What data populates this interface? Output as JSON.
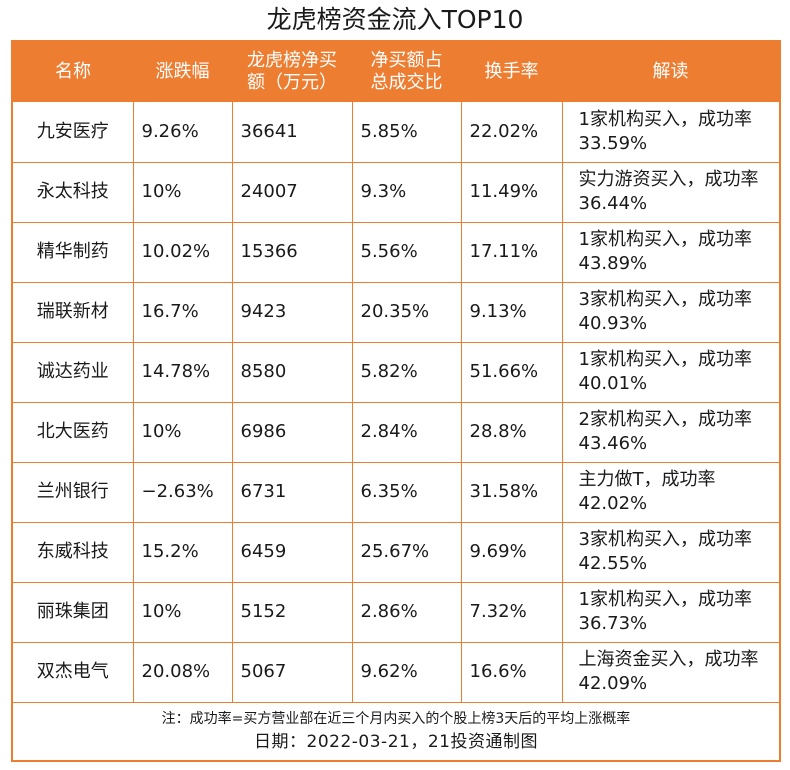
{
  "title": "龙虎榜资金流入TOP10",
  "table": {
    "headers": [
      "名称",
      "涨跌幅",
      "龙虎榜净买额（万元）",
      "净买额占总成交比",
      "换手率",
      "解读"
    ],
    "header_lines": [
      [
        "名称"
      ],
      [
        "涨跌幅"
      ],
      [
        "龙虎榜净买",
        "额（万元）"
      ],
      [
        "净买额占",
        "总成交比"
      ],
      [
        "换手率"
      ],
      [
        "解读"
      ]
    ],
    "rows": [
      {
        "name": "九安医疗",
        "change": "9.26%",
        "net_buy": "36641",
        "ratio": "5.85%",
        "turnover": "22.02%",
        "interp": "1家机构买入，成功率33.59%"
      },
      {
        "name": "永太科技",
        "change": "10%",
        "net_buy": "24007",
        "ratio": "9.3%",
        "turnover": "11.49%",
        "interp": "实力游资买入，成功率36.44%"
      },
      {
        "name": "精华制药",
        "change": "10.02%",
        "net_buy": "15366",
        "ratio": "5.56%",
        "turnover": "17.11%",
        "interp": "1家机构买入，成功率43.89%"
      },
      {
        "name": "瑞联新材",
        "change": "16.7%",
        "net_buy": "9423",
        "ratio": "20.35%",
        "turnover": "9.13%",
        "interp": "3家机构买入，成功率40.93%"
      },
      {
        "name": "诚达药业",
        "change": "14.78%",
        "net_buy": "8580",
        "ratio": "5.82%",
        "turnover": "51.66%",
        "interp": "1家机构买入，成功率40.01%"
      },
      {
        "name": "北大医药",
        "change": "10%",
        "net_buy": "6986",
        "ratio": "2.84%",
        "turnover": "28.8%",
        "interp": "2家机构买入，成功率43.46%"
      },
      {
        "name": "兰州银行",
        "change": "−2.63%",
        "net_buy": "6731",
        "ratio": "6.35%",
        "turnover": "31.58%",
        "interp": "主力做T，成功率42.02%"
      },
      {
        "name": "东威科技",
        "change": "15.2%",
        "net_buy": "6459",
        "ratio": "25.67%",
        "turnover": "9.69%",
        "interp": "3家机构买入，成功率42.55%"
      },
      {
        "name": "丽珠集团",
        "change": "10%",
        "net_buy": "5152",
        "ratio": "2.86%",
        "turnover": "7.32%",
        "interp": "1家机构买入，成功率36.73%"
      },
      {
        "name": "双杰电气",
        "change": "20.08%",
        "net_buy": "5067",
        "ratio": "9.62%",
        "turnover": "16.6%",
        "interp": "上海资金买入，成功率42.09%"
      }
    ]
  },
  "footer": {
    "note": "注：成功率=买方营业部在近三个月内买入的个股上榜3天后的平均上涨概率",
    "date": "日期：2022-03-21，21投资通制图"
  },
  "colors": {
    "accent": "#ed7d31",
    "header_text": "#ffffff"
  }
}
